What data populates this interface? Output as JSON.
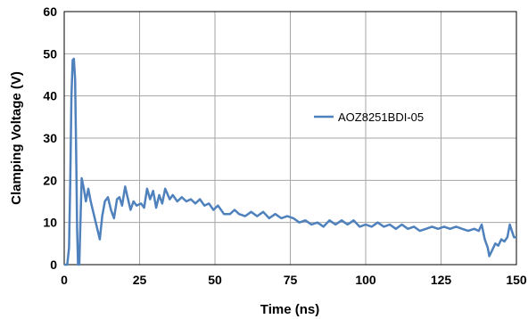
{
  "chart_data": {
    "type": "line",
    "xlabel": "Time (ns)",
    "ylabel": "Clamping Voltage (V)",
    "xlim": [
      0,
      150
    ],
    "ylim": [
      0,
      60
    ],
    "x_ticks": [
      0,
      25,
      50,
      75,
      100,
      125,
      150
    ],
    "y_ticks": [
      0,
      10,
      20,
      30,
      40,
      50,
      60
    ],
    "grid": true,
    "legend_position": "right-middle",
    "series": [
      {
        "name": "AOZ8251BDI-05",
        "color": "#4f81bd",
        "points": [
          [
            0.0,
            0
          ],
          [
            1.0,
            0
          ],
          [
            1.6,
            4
          ],
          [
            2.0,
            20
          ],
          [
            2.4,
            40
          ],
          [
            2.8,
            48.5
          ],
          [
            3.2,
            48.8
          ],
          [
            3.6,
            44
          ],
          [
            4.0,
            25
          ],
          [
            4.3,
            8
          ],
          [
            4.6,
            0
          ],
          [
            5.0,
            0
          ],
          [
            5.3,
            8
          ],
          [
            5.8,
            20.5
          ],
          [
            6.5,
            18
          ],
          [
            7.2,
            15
          ],
          [
            8.0,
            18
          ],
          [
            8.8,
            15
          ],
          [
            9.8,
            12
          ],
          [
            10.8,
            9
          ],
          [
            11.8,
            6
          ],
          [
            12.6,
            11.5
          ],
          [
            13.5,
            15
          ],
          [
            14.5,
            16
          ],
          [
            15.5,
            13
          ],
          [
            16.5,
            11
          ],
          [
            17.5,
            15.5
          ],
          [
            18.3,
            16
          ],
          [
            19.2,
            14
          ],
          [
            20.2,
            18.5
          ],
          [
            21.0,
            16
          ],
          [
            22.0,
            13
          ],
          [
            23.0,
            15
          ],
          [
            24.0,
            14
          ],
          [
            25.5,
            14.5
          ],
          [
            26.5,
            13.5
          ],
          [
            27.5,
            18
          ],
          [
            28.5,
            15.5
          ],
          [
            29.5,
            17.5
          ],
          [
            30.5,
            13.5
          ],
          [
            31.5,
            16.5
          ],
          [
            32.5,
            14.5
          ],
          [
            33.5,
            18
          ],
          [
            35.0,
            15.5
          ],
          [
            36.0,
            16.5
          ],
          [
            37.5,
            15
          ],
          [
            39.0,
            16
          ],
          [
            40.5,
            15
          ],
          [
            42.0,
            15.5
          ],
          [
            43.5,
            14.5
          ],
          [
            45.0,
            15.5
          ],
          [
            46.5,
            14
          ],
          [
            48.0,
            14.5
          ],
          [
            49.5,
            13
          ],
          [
            51.0,
            14
          ],
          [
            53.0,
            12
          ],
          [
            55.0,
            12
          ],
          [
            56.5,
            13
          ],
          [
            58.0,
            12
          ],
          [
            60.0,
            11.5
          ],
          [
            62.0,
            12.5
          ],
          [
            64.0,
            11.5
          ],
          [
            66.0,
            12.5
          ],
          [
            68.0,
            11
          ],
          [
            70.0,
            12
          ],
          [
            72.0,
            11
          ],
          [
            74.0,
            11.5
          ],
          [
            76.0,
            11
          ],
          [
            78.0,
            10
          ],
          [
            80.0,
            10.5
          ],
          [
            82.0,
            9.5
          ],
          [
            84.0,
            10
          ],
          [
            86.0,
            9
          ],
          [
            88.0,
            10.5
          ],
          [
            90.0,
            9.5
          ],
          [
            92.0,
            10.5
          ],
          [
            94.0,
            9.5
          ],
          [
            96.0,
            10.5
          ],
          [
            98.0,
            9
          ],
          [
            100.0,
            9.5
          ],
          [
            102.0,
            9
          ],
          [
            104.0,
            10
          ],
          [
            106.0,
            9
          ],
          [
            108.0,
            9.5
          ],
          [
            110.0,
            8.5
          ],
          [
            112.0,
            9.5
          ],
          [
            114.0,
            8.5
          ],
          [
            116.0,
            9
          ],
          [
            118.0,
            8
          ],
          [
            120.0,
            8.5
          ],
          [
            122.0,
            9
          ],
          [
            124.0,
            8.5
          ],
          [
            126.0,
            9
          ],
          [
            128.0,
            8.5
          ],
          [
            130.0,
            9
          ],
          [
            132.0,
            8.5
          ],
          [
            134.0,
            8
          ],
          [
            136.0,
            8.5
          ],
          [
            137.5,
            8
          ],
          [
            138.5,
            9.5
          ],
          [
            139.5,
            6
          ],
          [
            140.5,
            4
          ],
          [
            141.0,
            2
          ],
          [
            142.0,
            3.5
          ],
          [
            143.0,
            5
          ],
          [
            144.0,
            4.5
          ],
          [
            145.0,
            6
          ],
          [
            146.0,
            5.5
          ],
          [
            147.0,
            6.5
          ],
          [
            147.8,
            9.5
          ],
          [
            148.5,
            8
          ],
          [
            149.2,
            6.5
          ],
          [
            150.0,
            6.5
          ]
        ]
      }
    ]
  }
}
